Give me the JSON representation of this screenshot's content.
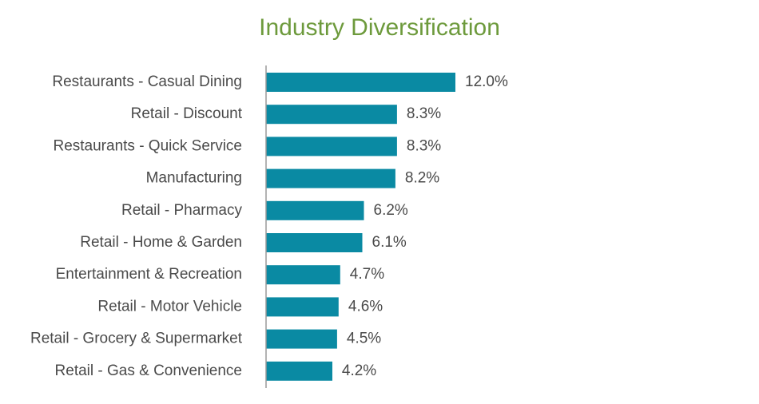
{
  "chart_data": {
    "type": "bar",
    "orientation": "horizontal",
    "title": "Industry Diversification",
    "xlabel": "",
    "ylabel": "",
    "xlim": [
      0,
      12.0
    ],
    "grid": false,
    "legend": "none",
    "categories": [
      "Restaurants - Casual Dining",
      "Retail - Discount",
      "Restaurants - Quick Service",
      "Manufacturing",
      "Retail - Pharmacy",
      "Retail - Home & Garden",
      "Entertainment & Recreation",
      "Retail - Motor Vehicle",
      "Retail - Grocery & Supermarket",
      "Retail - Gas & Convenience"
    ],
    "values": [
      12.0,
      8.3,
      8.3,
      8.2,
      6.2,
      6.1,
      4.7,
      4.6,
      4.5,
      4.2
    ],
    "value_labels": [
      "12.0%",
      "8.3%",
      "8.3%",
      "8.2%",
      "6.2%",
      "6.1%",
      "4.7%",
      "4.6%",
      "4.5%",
      "4.2%"
    ]
  },
  "colors": {
    "bar": "#0a8aa3",
    "title": "#6d9a3c",
    "axis": "#9a9a9a",
    "text": "#4a4a4a"
  }
}
